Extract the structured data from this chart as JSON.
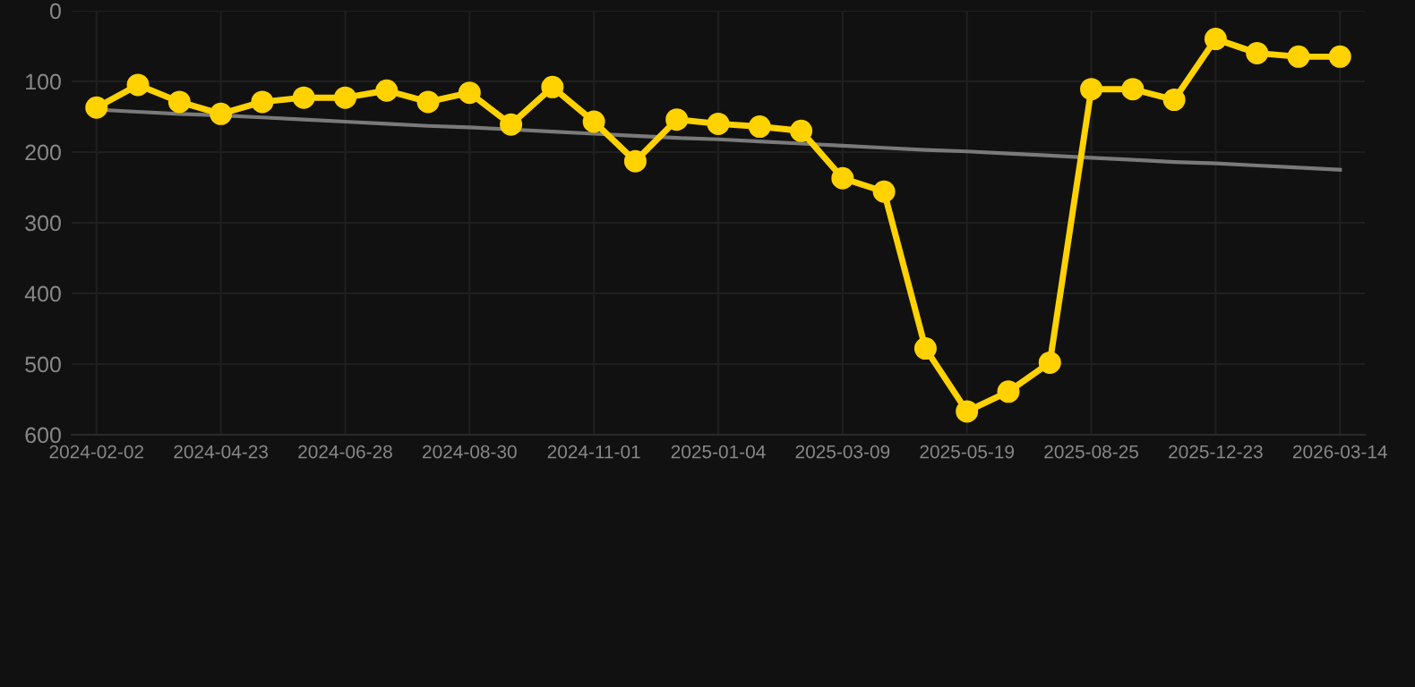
{
  "chart_data": {
    "type": "line",
    "categories": [
      "2024-02-02",
      null,
      null,
      "2024-04-23",
      null,
      null,
      "2024-06-28",
      null,
      null,
      "2024-08-30",
      null,
      null,
      "2024-11-01",
      null,
      null,
      "2025-01-04",
      null,
      null,
      "2025-03-09",
      null,
      null,
      "2025-05-19",
      null,
      null,
      "2025-08-25",
      null,
      null,
      "2025-12-23",
      null,
      null,
      "2026-03-14"
    ],
    "series": [
      {
        "color": "#ffd200",
        "marker": "circle",
        "values": [
          137,
          105,
          129,
          146,
          129,
          123,
          123,
          113,
          129,
          116,
          161,
          108,
          157,
          213,
          154,
          160,
          164,
          170,
          237,
          256,
          478,
          567,
          539,
          498,
          111,
          111,
          126,
          40,
          60,
          65,
          65
        ]
      },
      {
        "type": "line",
        "color": "#7a7a7a",
        "marker": "none",
        "values": [
          140,
          143,
          146,
          148,
          151,
          154,
          157,
          160,
          163,
          165,
          168,
          171,
          174,
          177,
          180,
          182,
          185,
          188,
          191,
          194,
          197,
          199,
          202,
          205,
          208,
          211,
          214,
          216,
          219,
          222,
          225
        ]
      }
    ],
    "ylim": [
      600,
      0
    ],
    "yticks": [
      0,
      100,
      200,
      300,
      400,
      500,
      600
    ],
    "grid": true,
    "line_style": "solid"
  }
}
